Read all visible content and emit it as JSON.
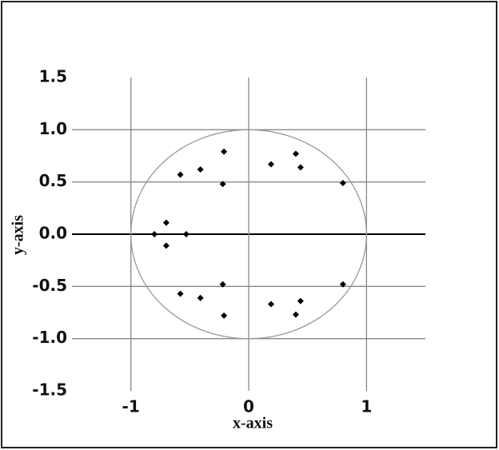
{
  "chart_data": {
    "type": "scatter",
    "xlabel": "x-axis",
    "ylabel": "y-axis",
    "xlim": [
      -1.5,
      1.5
    ],
    "ylim": [
      -1.5,
      1.5
    ],
    "xticks": [
      -1,
      0,
      1
    ],
    "yticks": [
      -1.5,
      {
        "value": -1,
        "label": "-1.0"
      },
      -0.5,
      {
        "value": 0,
        "label": "0.0"
      },
      0.5,
      {
        "value": 1,
        "label": "1.0"
      },
      1.5
    ],
    "grid": true,
    "unit_circle": true,
    "color": "#000000",
    "x": [
      -0.8,
      -0.7,
      -0.7,
      -0.53,
      -0.58,
      -0.41,
      -0.21,
      -0.22,
      0.19,
      0.4,
      0.44,
      0.8,
      -0.58,
      -0.41,
      -0.21,
      -0.22,
      0.19,
      0.4,
      0.44,
      0.8
    ],
    "y": [
      0,
      0.11,
      -0.11,
      0,
      0.57,
      0.62,
      0.79,
      0.48,
      0.67,
      0.77,
      0.64,
      0.49,
      -0.57,
      -0.61,
      -0.78,
      -0.48,
      -0.67,
      -0.77,
      -0.64,
      -0.48
    ]
  }
}
